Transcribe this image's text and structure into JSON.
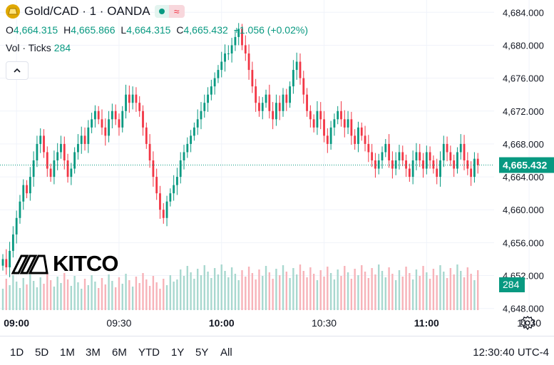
{
  "header": {
    "title": "Gold/CAD · 1 · OANDA",
    "open_label": "O",
    "open": "4,664.315",
    "high_label": "H",
    "high": "4,665.866",
    "low_label": "L",
    "low": "4,664.315",
    "close_label": "C",
    "close": "4,665.432",
    "change": "+1.056 (+0.02%)",
    "volume_label": "Vol · Ticks",
    "volume": "284"
  },
  "watermark": "KITCO",
  "range_buttons": [
    "1D",
    "5D",
    "1M",
    "3M",
    "6M",
    "YTD",
    "1Y",
    "5Y",
    "All"
  ],
  "clock": "12:30:40 UTC-4",
  "colors": {
    "up": "#089981",
    "down": "#f23645",
    "vol_up": "#a8d8cf",
    "vol_down": "#f7b3b9"
  },
  "chart_data": {
    "type": "candlestick",
    "title": "Gold/CAD · 1 · OANDA",
    "y_ticks": [
      "4,684.000",
      "4,680.000",
      "4,676.000",
      "4,672.000",
      "4,668.000",
      "4,664.000",
      "4,660.000",
      "4,656.000",
      "4,652.000",
      "4,648.000"
    ],
    "y_tick_values": [
      4684,
      4680,
      4676,
      4672,
      4668,
      4664,
      4660,
      4656,
      4652,
      4648
    ],
    "ylim": [
      4647.8,
      4685.5
    ],
    "x_ticks": [
      {
        "label": "09:00",
        "index": 4,
        "bold": true
      },
      {
        "label": "09:30",
        "index": 34,
        "bold": false
      },
      {
        "label": "10:00",
        "index": 64,
        "bold": true
      },
      {
        "label": "10:30",
        "index": 94,
        "bold": false
      },
      {
        "label": "11:00",
        "index": 124,
        "bold": true
      },
      {
        "label": "11:30",
        "index": 154,
        "bold": false
      },
      {
        "label": "12:00",
        "index": 184,
        "bold": true
      },
      {
        "label": "12:30",
        "index": 214,
        "bold": false
      }
    ],
    "last_price": 4665.432,
    "last_price_label": "4,665.432",
    "volume_label": "284",
    "x_label": "time",
    "close": [
      4654,
      4653,
      4655,
      4657,
      4659,
      4661,
      4663,
      4662,
      4664,
      4666,
      4668,
      4669,
      4667,
      4665,
      4664,
      4666,
      4667,
      4668,
      4666,
      4664,
      4665,
      4667,
      4668,
      4669,
      4668,
      4670,
      4671,
      4672,
      4671,
      4670,
      4669,
      4671,
      4672,
      4671,
      4670,
      4672,
      4674,
      4673,
      4674,
      4673,
      4672,
      4670,
      4668,
      4666,
      4664,
      4662,
      4660,
      4659,
      4661,
      4662,
      4663,
      4664,
      4666,
      4667,
      4668,
      4669,
      4670,
      4671,
      4672,
      4673,
      4674,
      4675,
      4676,
      4677,
      4678,
      4679,
      4679,
      4680,
      4681,
      4682,
      4680,
      4679,
      4677,
      4675,
      4673,
      4672,
      4673,
      4674,
      4672,
      4671,
      4673,
      4672,
      4674,
      4673,
      4675,
      4677,
      4678,
      4676,
      4674,
      4672,
      4671,
      4670,
      4672,
      4671,
      4669,
      4668,
      4670,
      4671,
      4672,
      4671,
      4670,
      4671,
      4669,
      4668,
      4670,
      4669,
      4668,
      4667,
      4666,
      4665,
      4666,
      4667,
      4668,
      4666,
      4665,
      4666,
      4667,
      4666,
      4665,
      4664,
      4666,
      4667,
      4666,
      4665,
      4667,
      4666,
      4665,
      4664,
      4666,
      4668,
      4667,
      4666,
      4665,
      4667,
      4668,
      4666,
      4665,
      4664,
      4666.2,
      4665.4
    ]
  }
}
